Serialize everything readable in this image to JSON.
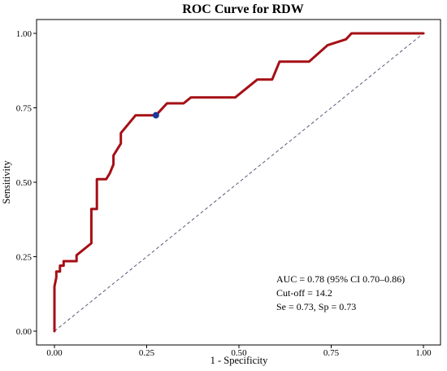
{
  "chart_data": {
    "type": "line",
    "title": "ROC Curve for RDW",
    "xlabel": "1 - Specificity",
    "ylabel": "Sensitivity",
    "xlim": [
      0,
      1
    ],
    "ylim": [
      0,
      1
    ],
    "xticks": [
      "0.00",
      "0.25",
      "0.50",
      "0.75",
      "1.00"
    ],
    "yticks": [
      "0.00",
      "0.25",
      "0.50",
      "0.75",
      "1.00"
    ],
    "grid": false,
    "series": [
      {
        "color": "#a50f15",
        "x": [
          0.0,
          0.0,
          0.005,
          0.005,
          0.015,
          0.015,
          0.025,
          0.025,
          0.06,
          0.06,
          0.1,
          0.1,
          0.115,
          0.115,
          0.14,
          0.15,
          0.16,
          0.16,
          0.18,
          0.18,
          0.22,
          0.275,
          0.305,
          0.35,
          0.37,
          0.49,
          0.55,
          0.59,
          0.61,
          0.69,
          0.74,
          0.79,
          0.805,
          1.0
        ],
        "y": [
          0.0,
          0.15,
          0.18,
          0.2,
          0.2,
          0.22,
          0.22,
          0.235,
          0.235,
          0.255,
          0.295,
          0.41,
          0.41,
          0.51,
          0.51,
          0.53,
          0.56,
          0.59,
          0.63,
          0.665,
          0.725,
          0.725,
          0.765,
          0.765,
          0.785,
          0.785,
          0.845,
          0.845,
          0.905,
          0.905,
          0.96,
          0.98,
          1.0,
          1.0
        ]
      },
      {
        "color": "#5a5a7a",
        "style": "dashed",
        "x": [
          0,
          1
        ],
        "y": [
          0,
          1
        ]
      }
    ],
    "highlight_point": {
      "x": 0.275,
      "y": 0.725,
      "color": "#1a3a9a"
    },
    "annotations": [
      "AUC = 0.78 (95% CI 0.70–0.86)",
      "Cut-off = 14.2",
      "Se = 0.73, Sp = 0.73"
    ]
  }
}
